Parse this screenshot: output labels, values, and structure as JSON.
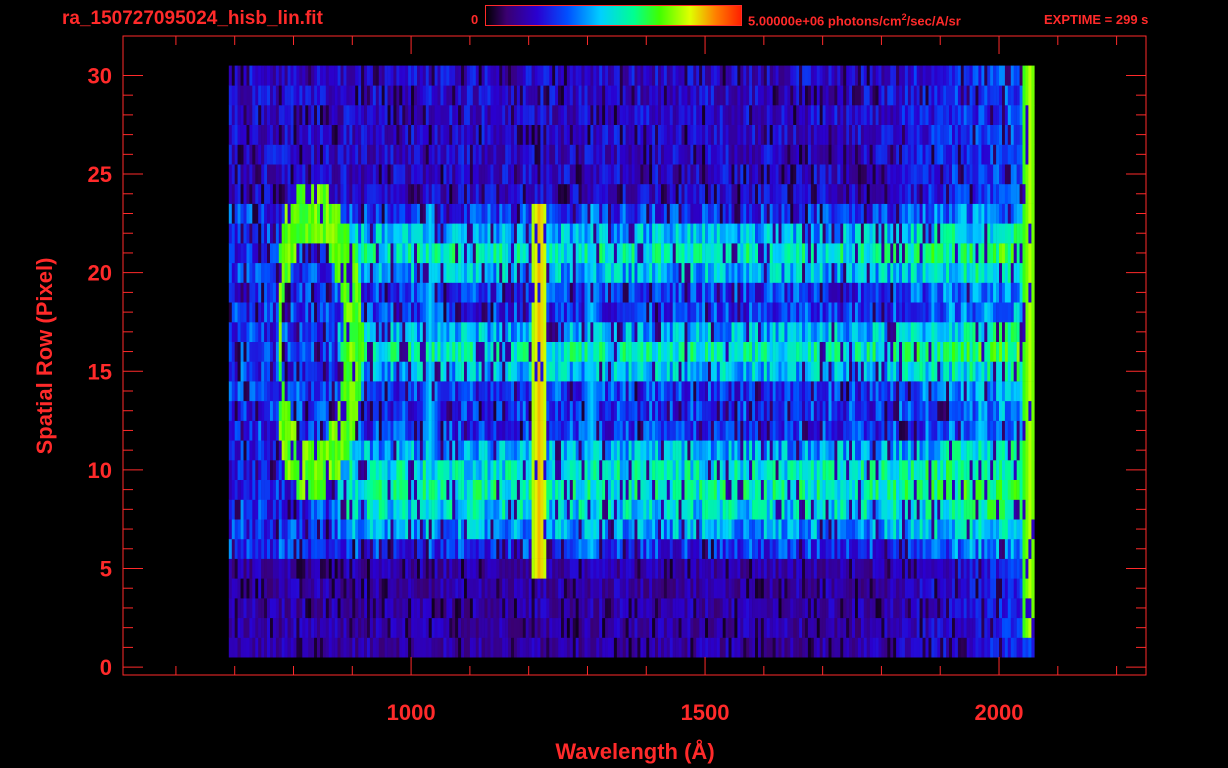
{
  "header": {
    "title": "ra_150727095024_hisb_lin.fit",
    "colorbar_min": "0",
    "colorbar_max_prefix": "5.00000e+06 photons/cm",
    "colorbar_max_sup": "2",
    "colorbar_max_suffix": "/sec/A/sr",
    "exptime": "EXPTIME = 299 s"
  },
  "colors": {
    "axis": "#ff2a2a",
    "background": "#000000",
    "colormap": [
      "#000000",
      "#3a0070",
      "#2a00d0",
      "#0050ff",
      "#00d0ff",
      "#00ff90",
      "#40ff00",
      "#e0ff00",
      "#ff8000",
      "#ff2000"
    ]
  },
  "chart_data": {
    "type": "heatmap",
    "title": "ra_150727095024_hisb_lin.fit",
    "xlabel": "Wavelength (Å)",
    "ylabel": "Spatial Row (Pixel)",
    "xlim": [
      510,
      2250
    ],
    "ylim": [
      -0.4,
      32
    ],
    "xticks": [
      1000,
      1500,
      2000
    ],
    "yticks": [
      0,
      5,
      10,
      15,
      20,
      25,
      30
    ],
    "colorbar": {
      "min": 0,
      "max": 5000000,
      "units": "photons/cm^2/sec/A/sr"
    },
    "spectral_range": [
      690,
      2060
    ],
    "features": [
      {
        "wavelength": 1216,
        "rows": [
          5,
          23
        ],
        "level": 0.85
      },
      {
        "wavelength": 1030,
        "rows": [
          8,
          23
        ],
        "level": 0.45
      },
      {
        "wavelength": 1304,
        "rows": [
          6,
          23
        ],
        "level": 0.45
      },
      {
        "wavelength": 2050,
        "rows": [
          2,
          30
        ],
        "level": 0.75
      }
    ],
    "bright_rows": [
      {
        "row": 21,
        "level": 0.5
      },
      {
        "row": 16,
        "level": 0.5
      },
      {
        "row": 10,
        "level": 0.45
      },
      {
        "row": 8,
        "level": 0.4
      }
    ]
  }
}
